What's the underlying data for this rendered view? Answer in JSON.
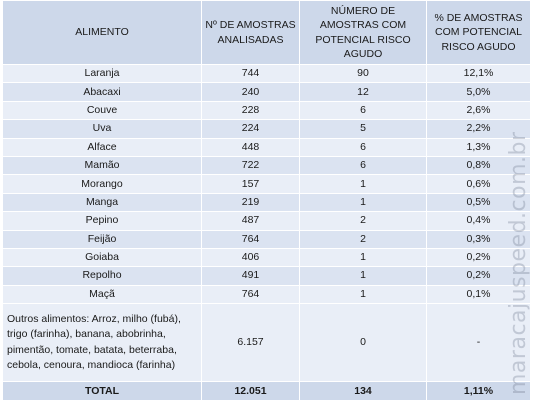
{
  "table": {
    "headers": [
      "ALIMENTO",
      "Nº DE AMOSTRAS ANALISADAS",
      "NÚMERO DE AMOSTRAS COM POTENCIAL RISCO AGUDO",
      "% DE AMOSTRAS COM POTENCIAL RISCO AGUDO"
    ],
    "rows": [
      [
        "Laranja",
        "744",
        "90",
        "12,1%"
      ],
      [
        "Abacaxi",
        "240",
        "12",
        "5,0%"
      ],
      [
        "Couve",
        "228",
        "6",
        "2,6%"
      ],
      [
        "Uva",
        "224",
        "5",
        "2,2%"
      ],
      [
        "Alface",
        "448",
        "6",
        "1,3%"
      ],
      [
        "Mamão",
        "722",
        "6",
        "0,8%"
      ],
      [
        "Morango",
        "157",
        "1",
        "0,6%"
      ],
      [
        "Manga",
        "219",
        "1",
        "0,5%"
      ],
      [
        "Pepino",
        "487",
        "2",
        "0,4%"
      ],
      [
        "Feijão",
        "764",
        "2",
        "0,3%"
      ],
      [
        "Goiaba",
        "406",
        "1",
        "0,2%"
      ],
      [
        "Repolho",
        "491",
        "1",
        "0,2%"
      ],
      [
        "Maçã",
        "764",
        "1",
        "0,1%"
      ]
    ],
    "outros": {
      "label": "Outros alimentos: Arroz, milho (fubá), trigo (farinha), banana, abobrinha, pimentão, tomate, batata, beterraba, cebola, cenoura, mandioca (farinha)",
      "analisadas": "6.157",
      "risco": "0",
      "percent": "-"
    },
    "total": {
      "label": "TOTAL",
      "analisadas": "12.051",
      "risco": "134",
      "percent": "1,11%"
    }
  },
  "watermark": "maracajuspeed.com.br"
}
